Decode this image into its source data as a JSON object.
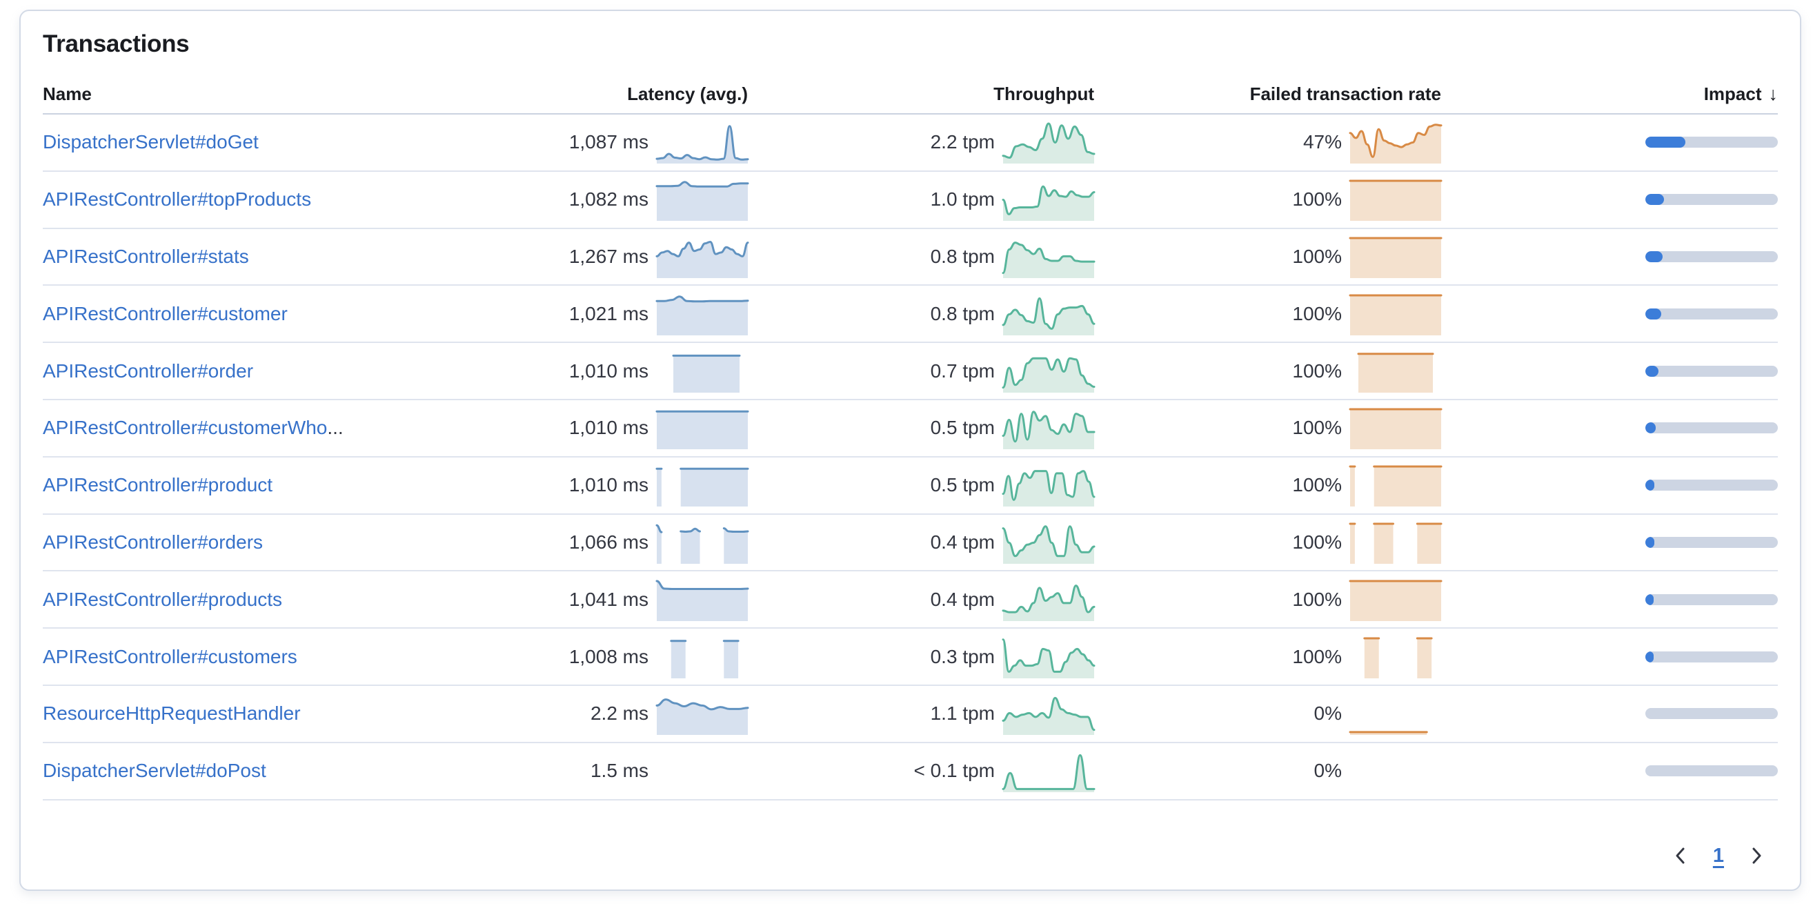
{
  "panel": {
    "title": "Transactions"
  },
  "table": {
    "columns": [
      {
        "label": "Name",
        "align": "left"
      },
      {
        "label": "Latency (avg.)",
        "align": "right"
      },
      {
        "label": "Throughput",
        "align": "right"
      },
      {
        "label": "Failed transaction rate",
        "align": "right"
      },
      {
        "label": "Impact",
        "align": "right",
        "sorted": "desc",
        "sort_icon": "↓"
      }
    ],
    "rows": [
      {
        "name": "DispatcherServlet#doGet",
        "ellipsis": "",
        "latency": "1,087 ms",
        "throughput": "2.2 tpm",
        "failed_rate": "47%",
        "impact_pct": 30,
        "latency_spark": [
          0.07,
          0.09,
          0.2,
          0.1,
          0.08,
          0.17,
          0.09,
          0.06,
          0.11,
          0.06,
          0.05,
          0.07,
          0.93,
          0.09,
          0.05,
          0.06
        ],
        "throughput_spark": [
          0.15,
          0.1,
          0.4,
          0.45,
          0.38,
          0.3,
          0.6,
          1.0,
          0.5,
          0.95,
          0.6,
          0.92,
          0.7,
          0.25,
          0.2
        ],
        "failed_spark": [
          0.75,
          0.62,
          0.8,
          0.45,
          0.12,
          0.85,
          0.55,
          0.48,
          0.42,
          0.38,
          0.45,
          0.5,
          0.75,
          0.7,
          0.92,
          0.97,
          0.95
        ]
      },
      {
        "name": "APIRestController#topProducts",
        "ellipsis": "",
        "latency": "1,082 ms",
        "throughput": "1.0 tpm",
        "failed_rate": "100%",
        "impact_pct": 14,
        "latency_spark": [
          0.86,
          0.86,
          0.86,
          0.87,
          0.97,
          0.86,
          0.85,
          0.85,
          0.85,
          0.85,
          0.85,
          0.92,
          0.93,
          0.93
        ],
        "throughput_spark": [
          0.5,
          0.12,
          0.28,
          0.3,
          0.3,
          0.3,
          0.32,
          0.85,
          0.6,
          0.75,
          0.6,
          0.58,
          0.72,
          0.62,
          0.58,
          0.58,
          0.7
        ],
        "failed_spark": [
          1,
          1,
          1,
          1,
          1,
          1,
          1,
          1,
          1,
          1,
          1,
          1
        ]
      },
      {
        "name": "APIRestController#stats",
        "ellipsis": "",
        "latency": "1,267 ms",
        "throughput": "0.8 tpm",
        "failed_rate": "100%",
        "impact_pct": 13,
        "latency_spark": [
          0.52,
          0.62,
          0.66,
          0.58,
          0.52,
          0.72,
          0.88,
          0.66,
          0.7,
          0.86,
          0.9,
          0.58,
          0.62,
          0.76,
          0.7,
          0.58,
          0.52,
          0.88
        ],
        "throughput_spark": [
          0.08,
          0.7,
          0.88,
          0.82,
          0.68,
          0.58,
          0.72,
          0.45,
          0.4,
          0.4,
          0.52,
          0.52,
          0.4,
          0.38,
          0.38,
          0.38
        ],
        "failed_spark": [
          1,
          1,
          1,
          1,
          1,
          1,
          1,
          1,
          1,
          1,
          1,
          1
        ]
      },
      {
        "name": "APIRestController#customer",
        "ellipsis": "",
        "latency": "1,021 ms",
        "throughput": "0.8 tpm",
        "failed_rate": "100%",
        "impact_pct": 12,
        "latency_spark": [
          0.85,
          0.85,
          0.88,
          0.97,
          0.85,
          0.84,
          0.84,
          0.85,
          0.85,
          0.85,
          0.85,
          0.85,
          0.86
        ],
        "throughput_spark": [
          0.22,
          0.5,
          0.62,
          0.48,
          0.32,
          0.28,
          0.92,
          0.25,
          0.12,
          0.5,
          0.65,
          0.68,
          0.68,
          0.72,
          0.5,
          0.25
        ],
        "failed_spark": [
          1,
          1,
          1,
          1,
          1,
          1,
          1,
          1,
          1,
          1,
          1,
          1
        ]
      },
      {
        "name": "APIRestController#order",
        "ellipsis": "",
        "latency": "1,010 ms",
        "throughput": "0.7 tpm",
        "failed_rate": "100%",
        "impact_pct": 10,
        "latency_spark": [
          null,
          null,
          0.92,
          0.92,
          0.92,
          0.92,
          0.92,
          0.92,
          0.92,
          0.92,
          0.92,
          null
        ],
        "throughput_spark": [
          0.08,
          0.6,
          0.15,
          0.28,
          0.72,
          0.85,
          0.85,
          0.85,
          0.55,
          0.82,
          0.5,
          0.85,
          0.82,
          0.4,
          0.18,
          0.1
        ],
        "failed_spark": [
          null,
          0.97,
          0.97,
          0.97,
          0.97,
          0.97,
          0.97,
          0.97,
          0.97,
          0.97,
          0.97,
          null
        ]
      },
      {
        "name": "APIRestController#customerWho",
        "ellipsis": "...",
        "latency": "1,010 ms",
        "throughput": "0.5 tpm",
        "failed_rate": "100%",
        "impact_pct": 8,
        "latency_spark": [
          0.94,
          0.94,
          0.94,
          0.94,
          0.94,
          0.94,
          0.94,
          0.94,
          0.94,
          0.94,
          0.94,
          0.94,
          0.94
        ],
        "throughput_spark": [
          0.3,
          0.72,
          0.15,
          0.88,
          0.2,
          0.93,
          0.7,
          0.82,
          0.45,
          0.35,
          0.6,
          0.4,
          0.88,
          0.82,
          0.4,
          0.4
        ],
        "failed_spark": [
          1,
          1,
          1,
          1,
          1,
          1,
          1,
          1,
          1,
          1,
          1,
          1,
          1
        ]
      },
      {
        "name": "APIRestController#product",
        "ellipsis": "",
        "latency": "1,010 ms",
        "throughput": "0.5 tpm",
        "failed_rate": "100%",
        "impact_pct": 7,
        "latency_spark": [
          0.94,
          0.94,
          null,
          null,
          null,
          0.94,
          0.94,
          0.94,
          0.94,
          0.94,
          0.94,
          0.94,
          0.94,
          0.94,
          0.94,
          0.94,
          0.94,
          0.94,
          0.94,
          0.94
        ],
        "throughput_spark": [
          0.28,
          0.75,
          0.12,
          0.55,
          0.82,
          0.7,
          0.88,
          0.88,
          0.88,
          0.3,
          0.82,
          0.82,
          0.25,
          0.2,
          0.82,
          0.88,
          0.6,
          0.2
        ],
        "failed_spark": [
          1,
          1,
          null,
          null,
          null,
          1,
          1,
          1,
          1,
          1,
          1,
          1,
          1,
          1,
          1,
          1,
          1,
          1,
          1,
          1
        ]
      },
      {
        "name": "APIRestController#orders",
        "ellipsis": "",
        "latency": "1,066 ms",
        "throughput": "0.4 tpm",
        "failed_rate": "100%",
        "impact_pct": 7,
        "latency_spark": [
          0.96,
          0.78,
          null,
          null,
          null,
          0.8,
          0.79,
          0.8,
          0.87,
          0.8,
          null,
          null,
          null,
          null,
          0.88,
          0.8,
          0.79,
          0.79,
          0.79,
          0.8
        ],
        "throughput_spark": [
          0.88,
          0.5,
          0.15,
          0.3,
          0.45,
          0.5,
          0.7,
          0.93,
          0.5,
          0.15,
          0.15,
          0.93,
          0.45,
          0.25,
          0.25,
          0.4
        ],
        "failed_spark": [
          1,
          1,
          null,
          null,
          null,
          1,
          1,
          1,
          1,
          1,
          null,
          null,
          null,
          null,
          1,
          1,
          1,
          1,
          1,
          1
        ]
      },
      {
        "name": "APIRestController#products",
        "ellipsis": "",
        "latency": "1,041 ms",
        "throughput": "0.4 tpm",
        "failed_rate": "100%",
        "impact_pct": 6,
        "latency_spark": [
          1.0,
          0.8,
          0.79,
          0.79,
          0.79,
          0.79,
          0.79,
          0.79,
          0.79,
          0.79,
          0.79,
          0.79,
          0.8
        ],
        "throughput_spark": [
          0.22,
          0.18,
          0.18,
          0.32,
          0.2,
          0.42,
          0.82,
          0.48,
          0.58,
          0.68,
          0.42,
          0.42,
          0.88,
          0.58,
          0.18,
          0.32
        ],
        "failed_spark": [
          1,
          1,
          1,
          1,
          1,
          1,
          1,
          1,
          1,
          1,
          1,
          1,
          1
        ]
      },
      {
        "name": "APIRestController#customers",
        "ellipsis": "",
        "latency": "1,008 ms",
        "throughput": "0.3 tpm",
        "failed_rate": "100%",
        "impact_pct": 6,
        "latency_spark": [
          null,
          null,
          null,
          0.93,
          0.93,
          0.93,
          0.93,
          null,
          null,
          null,
          null,
          null,
          null,
          null,
          0.93,
          0.93,
          0.93,
          0.93,
          null,
          null
        ],
        "throughput_spark": [
          0.97,
          0.12,
          0.28,
          0.42,
          0.28,
          0.28,
          0.32,
          0.72,
          0.68,
          0.12,
          0.12,
          0.38,
          0.62,
          0.72,
          0.58,
          0.42,
          0.28
        ],
        "failed_spark": [
          null,
          null,
          null,
          1,
          1,
          1,
          1,
          null,
          null,
          null,
          null,
          null,
          null,
          null,
          1,
          1,
          1,
          1,
          null,
          null
        ]
      },
      {
        "name": "ResourceHttpRequestHandler",
        "ellipsis": "",
        "latency": "2.2 ms",
        "throughput": "1.1 tpm",
        "failed_rate": "0%",
        "impact_pct": 0,
        "latency_spark": [
          0.72,
          0.88,
          0.78,
          0.7,
          0.78,
          0.72,
          0.62,
          0.68,
          0.63,
          0.63,
          0.66
        ],
        "throughput_spark": [
          0.32,
          0.52,
          0.42,
          0.48,
          0.52,
          0.42,
          0.52,
          0.4,
          0.92,
          0.62,
          0.52,
          0.48,
          0.42,
          0.42,
          0.08
        ],
        "failed_spark": [
          0.02,
          0.02,
          0.02,
          0.02,
          0.02,
          0.02,
          0.02,
          0.02,
          0.02,
          0.02,
          0.02,
          0.02,
          0.02,
          0.02,
          0.02,
          0.02,
          0.02,
          null,
          null,
          null
        ]
      },
      {
        "name": "DispatcherServlet#doPost",
        "ellipsis": "",
        "latency": "1.5 ms",
        "throughput": "< 0.1 tpm",
        "failed_rate": "0%",
        "impact_pct": 0,
        "latency_spark": [],
        "throughput_spark": [
          0.03,
          0.45,
          0.03,
          0.03,
          0.03,
          0.03,
          0.03,
          0.03,
          0.03,
          0.03,
          0.03,
          0.92,
          0.03,
          0.03
        ],
        "failed_spark": []
      }
    ]
  },
  "pagination": {
    "page": "1",
    "prev_icon": "chevron-left",
    "next_icon": "chevron-right"
  },
  "colors": {
    "latency_line": "#6092C0",
    "latency_fill": "#D7E1EF",
    "throughput_line": "#57B59B",
    "throughput_fill": "#DBECE5",
    "failed_line": "#D88A45",
    "failed_fill": "#F4E1CE",
    "impact_fill": "#3C7DD9",
    "impact_track": "#CDD5E3",
    "link": "#3671C9"
  }
}
